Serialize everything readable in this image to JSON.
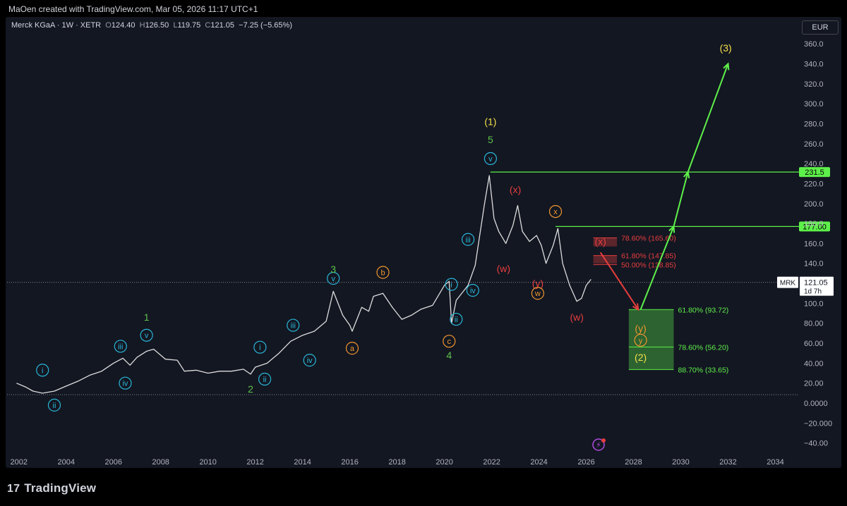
{
  "attribution": "MaOen created with TradingView.com, Mar 05, 2026 11:17 UTC+1",
  "legend": {
    "symbol": "Merck KGaA · 1W · XETR",
    "o_label": "O",
    "o": "124.40",
    "h_label": "H",
    "h": "126.50",
    "l_label": "L",
    "l": "119.75",
    "c_label": "C",
    "c": "121.05",
    "change": "−7.25 (−5.65%)"
  },
  "currency": "EUR",
  "footer": {
    "brand": "TradingView",
    "logo_glyph": "17"
  },
  "colors": {
    "green": "#5ef04a",
    "red": "#e83e3e",
    "orange": "#f0962e",
    "cyan": "#29b6d8",
    "yellow": "#f5e04a",
    "wave_green": "#5fc34a"
  },
  "chart_data": {
    "type": "line",
    "title": "",
    "symbol_label": "MRK",
    "last_price_label": "121.05",
    "countdown": "1d 7h",
    "xlim": [
      2001.5,
      2035.0
    ],
    "ylim": [
      -48,
      370
    ],
    "y_ticks": [
      "360.0",
      "340.0",
      "320.0",
      "300.0",
      "280.0",
      "260.0",
      "240.0",
      "220.0",
      "200.0",
      "180.0",
      "160.0",
      "140.0",
      "120.0",
      "100.0",
      "80.00",
      "60.00",
      "40.00",
      "20.00",
      "0.0000",
      "−20.000",
      "−40.00"
    ],
    "y_tick_values": [
      360,
      340,
      320,
      300,
      280,
      260,
      240,
      220,
      200,
      180,
      160,
      140,
      120,
      100,
      80,
      60,
      40,
      20,
      0,
      -20,
      -40
    ],
    "x_ticks": [
      "2002",
      "2004",
      "2006",
      "2008",
      "2010",
      "2012",
      "2014",
      "2016",
      "2018",
      "2020",
      "2022",
      "2024",
      "2026",
      "2028",
      "2030",
      "2032",
      "2034"
    ],
    "x_tick_values": [
      2002,
      2004,
      2006,
      2008,
      2010,
      2012,
      2014,
      2016,
      2018,
      2020,
      2022,
      2024,
      2026,
      2028,
      2030,
      2032,
      2034
    ],
    "price_series": {
      "x": [
        2001.9,
        2002.3,
        2002.6,
        2003.0,
        2003.5,
        2004.0,
        2004.5,
        2005.0,
        2005.5,
        2006.0,
        2006.4,
        2006.7,
        2007.0,
        2007.4,
        2007.7,
        2008.2,
        2008.7,
        2009.0,
        2009.5,
        2010.0,
        2010.5,
        2011.0,
        2011.5,
        2011.8,
        2012.0,
        2012.5,
        2013.0,
        2013.5,
        2014.0,
        2014.5,
        2015.0,
        2015.3,
        2015.7,
        2016.0,
        2016.1,
        2016.5,
        2016.8,
        2017.0,
        2017.4,
        2017.8,
        2018.2,
        2018.6,
        2019.0,
        2019.5,
        2020.0,
        2020.2,
        2020.3,
        2020.5,
        2021.0,
        2021.3,
        2021.7,
        2021.9,
        2022.1,
        2022.3,
        2022.6,
        2022.9,
        2023.1,
        2023.3,
        2023.6,
        2023.9,
        2024.1,
        2024.3,
        2024.6,
        2024.8,
        2025.0,
        2025.3,
        2025.6,
        2025.8,
        2026.0,
        2026.2
      ],
      "y": [
        20,
        16,
        12,
        10,
        12,
        17,
        22,
        28,
        32,
        40,
        45,
        38,
        46,
        52,
        54,
        44,
        43,
        32,
        33,
        30,
        32,
        32,
        34,
        29,
        36,
        40,
        50,
        62,
        68,
        72,
        82,
        112,
        88,
        78,
        72,
        96,
        92,
        107,
        110,
        96,
        84,
        88,
        94,
        98,
        118,
        122,
        80,
        103,
        118,
        138,
        200,
        228,
        185,
        172,
        160,
        178,
        198,
        172,
        162,
        168,
        158,
        140,
        158,
        175,
        140,
        118,
        102,
        105,
        118,
        124
      ],
      "color": "#dddddd"
    },
    "fib_zones": [
      {
        "label": "78.60% (165.60)",
        "top": 165.6,
        "bottom": 157.0,
        "color": "#e83e3e",
        "x_start": 2026.3,
        "x_end": 2027.3
      },
      {
        "label": "61.80% (147.85)",
        "top": 147.85,
        "bottom": 140.0,
        "color": "#e83e3e",
        "x_start": 2026.3,
        "x_end": 2027.3
      },
      {
        "label": "50.00% (138.85)",
        "top": 138.85,
        "bottom": 138.85,
        "color": "#e83e3e",
        "x_start": 2026.3,
        "x_end": 2027.3
      },
      {
        "label": "61.80% (93.72)",
        "top": 93.72,
        "bottom": 56.2,
        "color": "#5ef04a",
        "x_start": 2027.8,
        "x_end": 2029.7
      },
      {
        "label": "78.60% (56.20)",
        "top": 56.2,
        "bottom": 33.65,
        "color": "#5ef04a",
        "x_start": 2027.8,
        "x_end": 2029.7
      },
      {
        "label": "88.70% (33.65)",
        "top": 33.65,
        "bottom": 33.65,
        "color": "#5ef04a",
        "x_start": 2027.8,
        "x_end": 2029.7
      }
    ],
    "horizontal_levels": [
      {
        "label": "231.5",
        "y": 231.5,
        "x_start": 2021.95,
        "color": "#5ef04a"
      },
      {
        "label": "177.00",
        "y": 177.0,
        "x_start": 2024.7,
        "color": "#5ef04a"
      }
    ],
    "dotted_levels": [
      121.05,
      8.5
    ],
    "projection_paths": [
      {
        "color": "#e83e3e",
        "points": [
          [
            2026.6,
            151
          ],
          [
            2028.2,
            93.72
          ]
        ]
      },
      {
        "color": "#5ef04a",
        "points": [
          [
            2028.3,
            93.72
          ],
          [
            2029.7,
            177
          ],
          [
            2030.3,
            231.5
          ],
          [
            2032.0,
            340
          ]
        ]
      }
    ],
    "wave_labels": [
      {
        "text": "i",
        "x": 2003.0,
        "y": 33,
        "color": "#29b6d8",
        "circle": true
      },
      {
        "text": "ii",
        "x": 2003.5,
        "y": -2,
        "color": "#29b6d8",
        "circle": true
      },
      {
        "text": "iii",
        "x": 2006.3,
        "y": 57,
        "color": "#29b6d8",
        "circle": true
      },
      {
        "text": "iv",
        "x": 2006.5,
        "y": 20,
        "color": "#29b6d8",
        "circle": true
      },
      {
        "text": "v",
        "x": 2007.4,
        "y": 68,
        "color": "#29b6d8",
        "circle": true
      },
      {
        "text": "1",
        "x": 2007.4,
        "y": 86,
        "color": "#5fc34a",
        "circle": false
      },
      {
        "text": "i",
        "x": 2012.2,
        "y": 56,
        "color": "#29b6d8",
        "circle": true
      },
      {
        "text": "ii",
        "x": 2012.4,
        "y": 24,
        "color": "#29b6d8",
        "circle": true
      },
      {
        "text": "2",
        "x": 2011.8,
        "y": 14,
        "color": "#5fc34a",
        "circle": false
      },
      {
        "text": "iii",
        "x": 2013.6,
        "y": 78,
        "color": "#29b6d8",
        "circle": true
      },
      {
        "text": "iv",
        "x": 2014.3,
        "y": 43,
        "color": "#29b6d8",
        "circle": true
      },
      {
        "text": "v",
        "x": 2015.3,
        "y": 125,
        "color": "#29b6d8",
        "circle": true
      },
      {
        "text": "3",
        "x": 2015.3,
        "y": 134,
        "color": "#5fc34a",
        "circle": false
      },
      {
        "text": "a",
        "x": 2016.1,
        "y": 55,
        "color": "#f0962e",
        "circle": true
      },
      {
        "text": "b",
        "x": 2017.4,
        "y": 131,
        "color": "#f0962e",
        "circle": true
      },
      {
        "text": "i",
        "x": 2020.3,
        "y": 119,
        "color": "#29b6d8",
        "circle": true
      },
      {
        "text": "ii",
        "x": 2020.5,
        "y": 84,
        "color": "#29b6d8",
        "circle": true
      },
      {
        "text": "iii",
        "x": 2021.0,
        "y": 164,
        "color": "#29b6d8",
        "circle": true
      },
      {
        "text": "iv",
        "x": 2021.2,
        "y": 113,
        "color": "#29b6d8",
        "circle": true
      },
      {
        "text": "c",
        "x": 2020.2,
        "y": 62,
        "color": "#f0962e",
        "circle": true
      },
      {
        "text": "4",
        "x": 2020.2,
        "y": 48,
        "color": "#5fc34a",
        "circle": false
      },
      {
        "text": "v",
        "x": 2021.95,
        "y": 245,
        "color": "#29b6d8",
        "circle": true
      },
      {
        "text": "5",
        "x": 2021.95,
        "y": 264,
        "color": "#5fc34a",
        "circle": false
      },
      {
        "text": "(1)",
        "x": 2021.95,
        "y": 282,
        "color": "#f5e04a",
        "circle": false
      },
      {
        "text": "(x)",
        "x": 2023.0,
        "y": 214,
        "color": "#e83e3e",
        "circle": false
      },
      {
        "text": "(w)",
        "x": 2022.5,
        "y": 135,
        "color": "#e83e3e",
        "circle": false
      },
      {
        "text": "x",
        "x": 2024.7,
        "y": 192,
        "color": "#f0962e",
        "circle": true
      },
      {
        "text": "(y)",
        "x": 2023.95,
        "y": 120,
        "color": "#e83e3e",
        "circle": false
      },
      {
        "text": "w",
        "x": 2023.95,
        "y": 110,
        "color": "#f0962e",
        "circle": true
      },
      {
        "text": "(w)",
        "x": 2025.6,
        "y": 86,
        "color": "#e83e3e",
        "circle": false
      },
      {
        "text": "(x)",
        "x": 2026.6,
        "y": 162,
        "color": "#e83e3e",
        "circle": false
      },
      {
        "text": "(y)",
        "x": 2028.3,
        "y": 75,
        "color": "#f0962e",
        "circle": false
      },
      {
        "text": "y",
        "x": 2028.3,
        "y": 63,
        "color": "#f0962e",
        "circle": true
      },
      {
        "text": "(2)",
        "x": 2028.3,
        "y": 46,
        "color": "#f5e04a",
        "circle": false
      },
      {
        "text": "(3)",
        "x": 2031.9,
        "y": 356,
        "color": "#f5e04a",
        "circle": false
      }
    ]
  }
}
